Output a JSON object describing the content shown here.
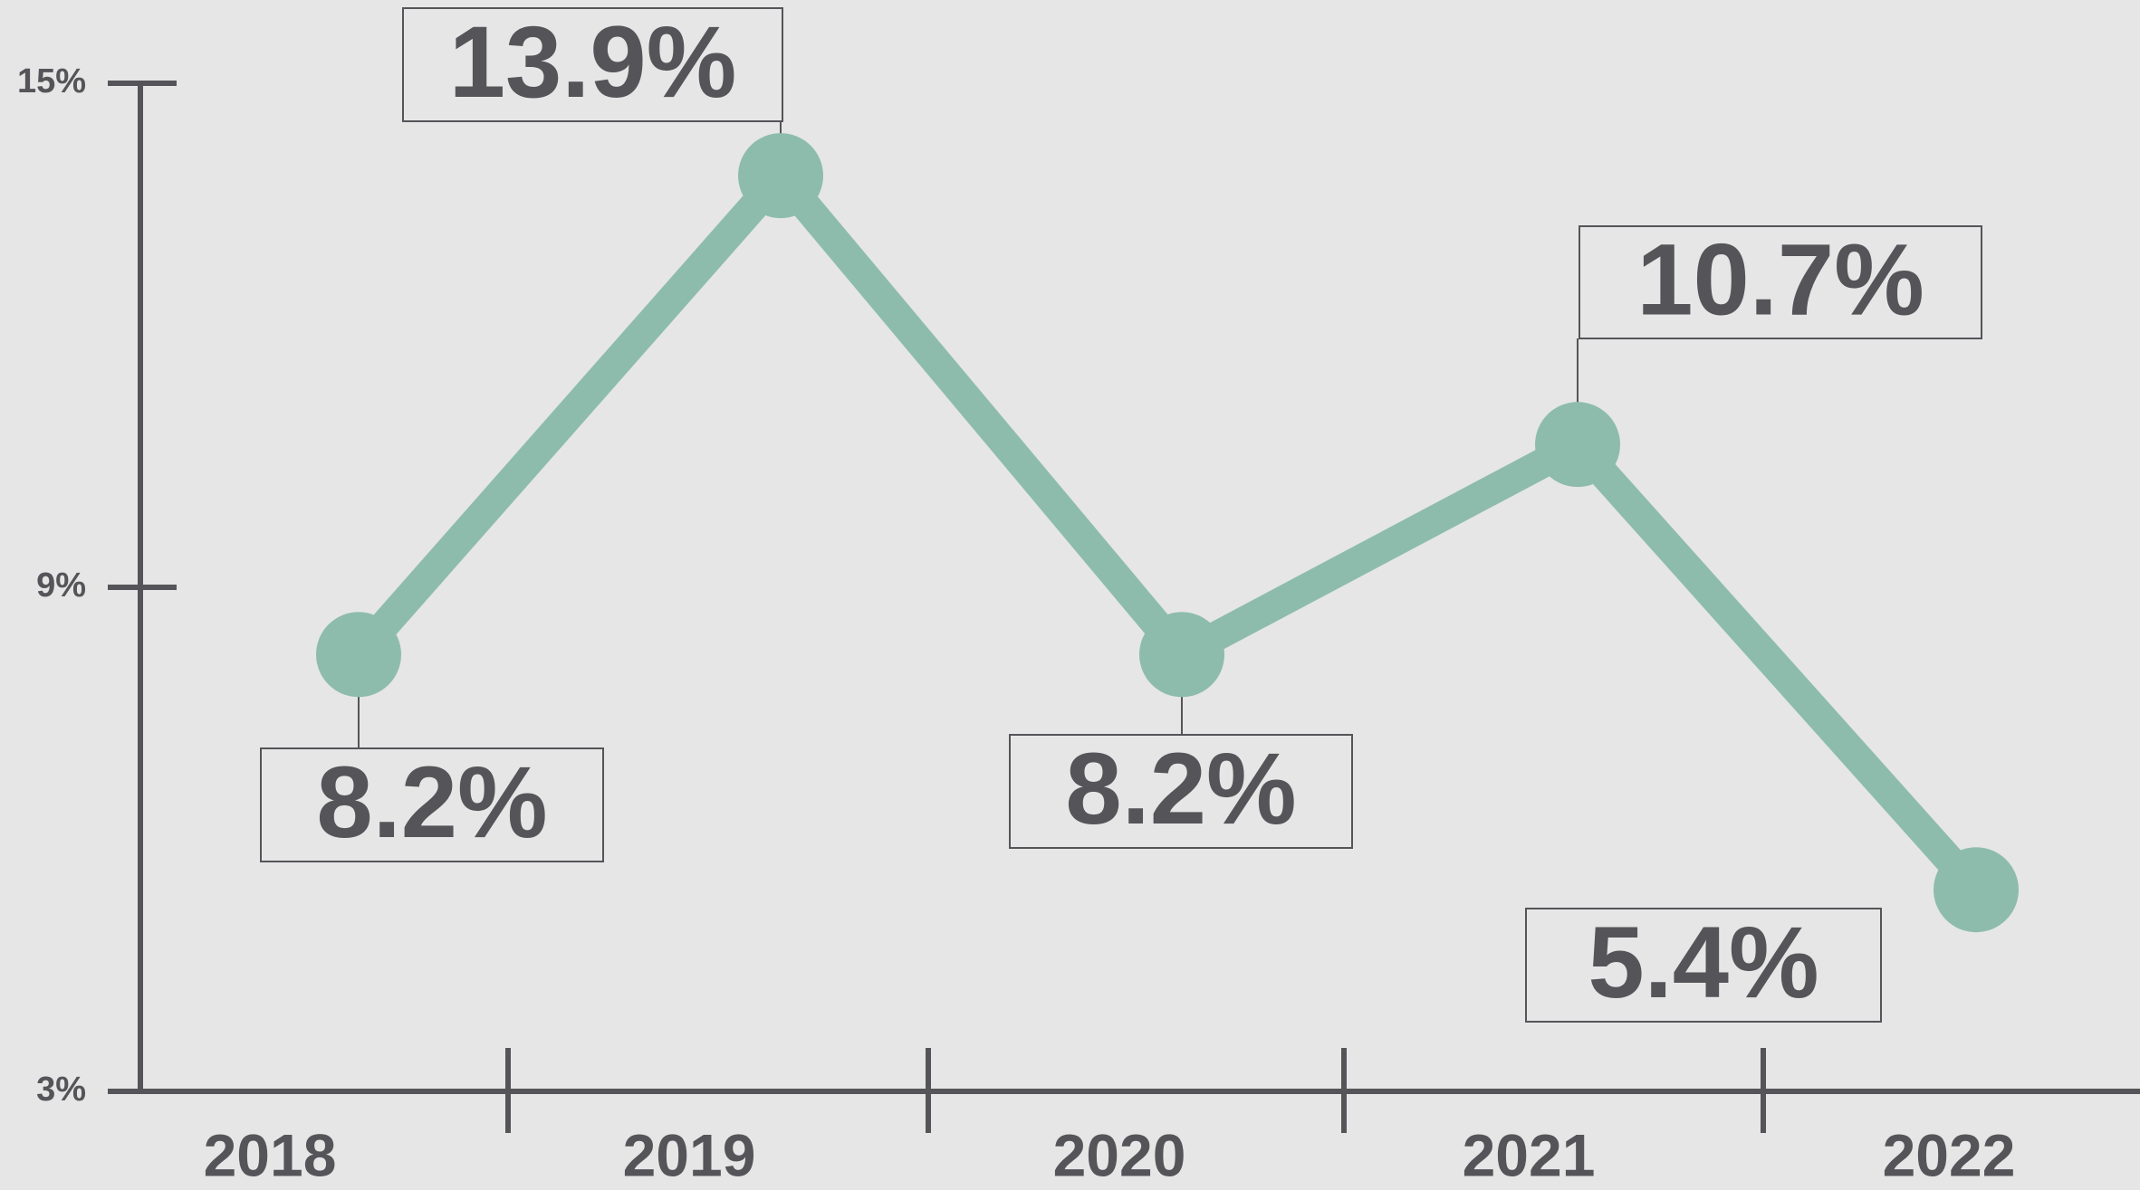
{
  "chart_data": {
    "type": "line",
    "categories": [
      "2018",
      "2019",
      "2020",
      "2021",
      "2022"
    ],
    "series": [
      {
        "name": null,
        "color": "#8dbcad",
        "values": [
          8.2,
          13.9,
          8.2,
          10.7,
          5.4
        ],
        "value_labels": [
          "8.2%",
          "13.9%",
          "8.2%",
          "10.7%",
          "5.4%"
        ]
      }
    ],
    "ylim": [
      3,
      15
    ],
    "yticks": [
      {
        "value": 3,
        "label": "3%"
      },
      {
        "value": 9,
        "label": "9%"
      },
      {
        "value": 15,
        "label": "15%"
      }
    ]
  }
}
